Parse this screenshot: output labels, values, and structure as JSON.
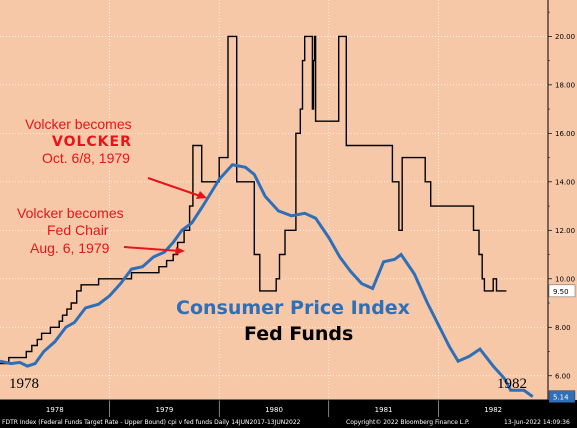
{
  "chart_data": {
    "type": "line",
    "yticks": [
      "20.00",
      "18.00",
      "16.00",
      "14.00",
      "12.00",
      "10.00",
      "8.00",
      "6.00"
    ],
    "ytick_values": [
      20,
      18,
      16,
      14,
      12,
      10,
      8,
      6
    ],
    "ylim": [
      5.0,
      21.5
    ],
    "xlim": [
      1978.0,
      1983.0
    ],
    "xticks": [
      {
        "label": "1978",
        "x": 1978.5
      },
      {
        "label": "1979",
        "x": 1979.5
      },
      {
        "label": "1980",
        "x": 1980.5
      },
      {
        "label": "1981",
        "x": 1981.5
      },
      {
        "label": "1982",
        "x": 1982.5
      }
    ],
    "last_value_labels": [
      {
        "text": "9.50",
        "value": 9.5,
        "color": "#000000",
        "bg": "#ffffff"
      },
      {
        "text": "5.14",
        "value": 5.14,
        "color": "#ffffff",
        "bg": "#2e6fb8"
      }
    ],
    "series": [
      {
        "name": "Fed Funds",
        "color": "#000000",
        "step": true,
        "points": [
          [
            1978.0,
            6.5
          ],
          [
            1978.08,
            6.75
          ],
          [
            1978.16,
            6.75
          ],
          [
            1978.24,
            7.0
          ],
          [
            1978.29,
            7.25
          ],
          [
            1978.34,
            7.5
          ],
          [
            1978.38,
            7.75
          ],
          [
            1978.42,
            7.75
          ],
          [
            1978.46,
            8.0
          ],
          [
            1978.5,
            8.0
          ],
          [
            1978.54,
            8.25
          ],
          [
            1978.57,
            8.5
          ],
          [
            1978.61,
            8.75
          ],
          [
            1978.65,
            9.0
          ],
          [
            1978.7,
            9.5
          ],
          [
            1978.74,
            9.75
          ],
          [
            1978.82,
            9.75
          ],
          [
            1978.9,
            10.0
          ],
          [
            1979.1,
            10.0
          ],
          [
            1979.2,
            10.25
          ],
          [
            1979.45,
            10.5
          ],
          [
            1979.52,
            10.75
          ],
          [
            1979.58,
            11.0
          ],
          [
            1979.62,
            11.5
          ],
          [
            1979.68,
            12.0
          ],
          [
            1979.73,
            13.0
          ],
          [
            1979.76,
            15.5
          ],
          [
            1979.84,
            14.0
          ],
          [
            1979.97,
            14.0
          ],
          [
            1980.0,
            15.0
          ],
          [
            1980.08,
            20.0
          ],
          [
            1980.15,
            20.0
          ],
          [
            1980.16,
            14.0
          ],
          [
            1980.26,
            14.0
          ],
          [
            1980.32,
            11.0
          ],
          [
            1980.37,
            9.5
          ],
          [
            1980.5,
            9.5
          ],
          [
            1980.52,
            10.0
          ],
          [
            1980.55,
            11.0
          ],
          [
            1980.6,
            12.0
          ],
          [
            1980.7,
            16.0
          ],
          [
            1980.74,
            17.0
          ],
          [
            1980.76,
            19.0
          ],
          [
            1980.78,
            20.0
          ],
          [
            1980.84,
            20.0
          ],
          [
            1980.85,
            17.0
          ],
          [
            1980.86,
            19.0
          ],
          [
            1980.87,
            20.0
          ],
          [
            1980.88,
            16.5
          ],
          [
            1981.08,
            16.5
          ],
          [
            1981.09,
            20.0
          ],
          [
            1981.14,
            20.0
          ],
          [
            1981.16,
            15.5
          ],
          [
            1981.55,
            15.5
          ],
          [
            1981.58,
            14.0
          ],
          [
            1981.64,
            12.0
          ],
          [
            1981.67,
            15.0
          ],
          [
            1981.86,
            15.0
          ],
          [
            1981.88,
            14.0
          ],
          [
            1981.91,
            14.0
          ],
          [
            1981.93,
            13.0
          ],
          [
            1982.14,
            13.0
          ],
          [
            1982.22,
            13.0
          ],
          [
            1982.32,
            12.0
          ],
          [
            1982.37,
            11.0
          ],
          [
            1982.4,
            10.0
          ],
          [
            1982.42,
            9.5
          ],
          [
            1982.48,
            9.5
          ],
          [
            1982.5,
            10.0
          ],
          [
            1982.53,
            9.5
          ],
          [
            1982.62,
            9.5
          ]
        ]
      },
      {
        "name": "Consumer Price Index",
        "color": "#2e6fb8",
        "step": false,
        "points": [
          [
            1978.0,
            6.6
          ],
          [
            1978.1,
            6.5
          ],
          [
            1978.18,
            6.55
          ],
          [
            1978.25,
            6.4
          ],
          [
            1978.32,
            6.5
          ],
          [
            1978.4,
            7.0
          ],
          [
            1978.5,
            7.4
          ],
          [
            1978.6,
            8.0
          ],
          [
            1978.68,
            8.2
          ],
          [
            1978.78,
            8.8
          ],
          [
            1978.9,
            8.95
          ],
          [
            1979.0,
            9.3
          ],
          [
            1979.1,
            9.8
          ],
          [
            1979.2,
            10.4
          ],
          [
            1979.3,
            10.5
          ],
          [
            1979.4,
            10.9
          ],
          [
            1979.5,
            11.1
          ],
          [
            1979.58,
            11.5
          ],
          [
            1979.66,
            12.0
          ],
          [
            1979.75,
            12.3
          ],
          [
            1979.85,
            13.0
          ],
          [
            1980.0,
            14.1
          ],
          [
            1980.12,
            14.7
          ],
          [
            1980.24,
            14.6
          ],
          [
            1980.32,
            14.3
          ],
          [
            1980.42,
            13.4
          ],
          [
            1980.54,
            12.8
          ],
          [
            1980.66,
            12.6
          ],
          [
            1980.78,
            12.7
          ],
          [
            1980.88,
            12.5
          ],
          [
            1981.0,
            11.7
          ],
          [
            1981.1,
            10.9
          ],
          [
            1981.2,
            10.3
          ],
          [
            1981.3,
            9.8
          ],
          [
            1981.4,
            9.6
          ],
          [
            1981.5,
            10.7
          ],
          [
            1981.6,
            10.8
          ],
          [
            1981.66,
            11.0
          ],
          [
            1981.78,
            10.2
          ],
          [
            1981.9,
            9.0
          ],
          [
            1982.0,
            8.1
          ],
          [
            1982.1,
            7.2
          ],
          [
            1982.18,
            6.6
          ],
          [
            1982.28,
            6.8
          ],
          [
            1982.38,
            7.1
          ],
          [
            1982.5,
            6.4
          ],
          [
            1982.6,
            5.9
          ],
          [
            1982.66,
            5.4
          ],
          [
            1982.78,
            5.4
          ],
          [
            1982.86,
            5.14
          ]
        ]
      }
    ],
    "legend": [
      "Consumer Price Index",
      "Fed Funds"
    ]
  },
  "annotations": {
    "volcker_a_line1": "Volcker becomes",
    "volcker_a_line2": "VOLCKER",
    "volcker_a_line3": "Oct. 6/8, 1979",
    "volcker_b_line1": "Volcker becomes",
    "volcker_b_line2": "Fed Chair",
    "volcker_b_line3": "Aug. 6, 1979",
    "color": "#e8141a"
  },
  "legend_labels": {
    "cpi": "Consumer Price Index",
    "fed_funds": "Fed Funds"
  },
  "corner_labels": {
    "left": "1978",
    "right": "1982"
  },
  "footer": {
    "left": "FDTR Index (Federal Funds Target Rate - Upper Bound) cpi v fed funds  Daily 14JUN2017-13JUN2022",
    "center": "Copyright© 2022 Bloomberg Finance L.P.",
    "right": "13-Jun-2022 14:09:36"
  },
  "colors": {
    "plot_bg": "#f7c8a8",
    "frame": "#000000",
    "grid": "#ffffff",
    "cpi": "#2e6fb8",
    "fed_funds": "#000000"
  }
}
